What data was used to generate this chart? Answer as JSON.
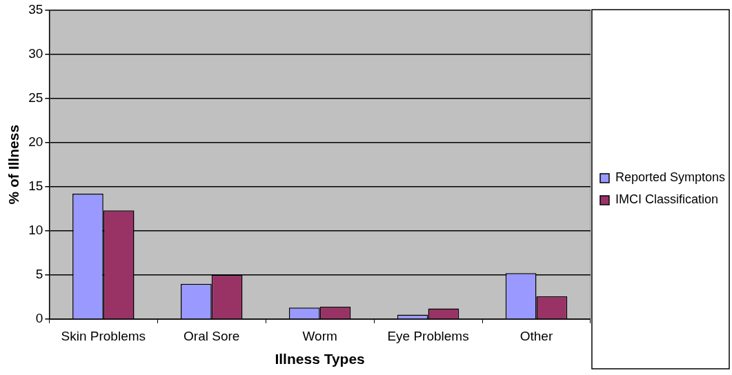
{
  "chart_data": {
    "type": "bar",
    "xlabel": "Illness Types",
    "ylabel": "% of Illness",
    "categories": [
      "Skin Problems",
      "Oral Sore",
      "Worm",
      "Eye Problems",
      "Other"
    ],
    "series": [
      {
        "name": "Reported Symptons",
        "color": "#9999ff",
        "values": [
          14.2,
          4.0,
          1.3,
          0.5,
          5.2
        ]
      },
      {
        "name": "IMCI Classification",
        "color": "#993366",
        "values": [
          12.3,
          5.0,
          1.4,
          1.2,
          2.6
        ]
      }
    ],
    "ylim": [
      0,
      35
    ],
    "yticks": [
      0,
      5,
      10,
      15,
      20,
      25,
      30,
      35
    ],
    "grid": "y",
    "legend": "right"
  }
}
